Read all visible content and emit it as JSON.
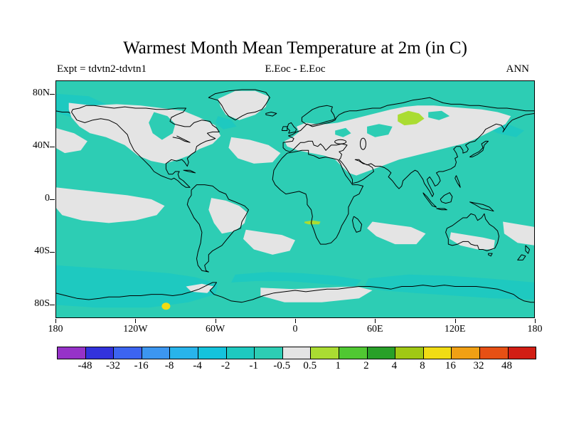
{
  "header": {
    "title": "Warmest Month Mean Temperature at 2m (in C)",
    "experiment_label": "Expt = tdvtn2-tdvtn1",
    "case_label": "E.Eoc - E.Eoc",
    "season_label": "ANN"
  },
  "chart_data": {
    "type": "heatmap",
    "subtype": "filled-contour difference map on equirectangular world projection",
    "title": "Warmest Month Mean Temperature at 2m (in C)",
    "annotations": {
      "top_left": "Expt = tdvtn2-tdvtn1",
      "top_center": "E.Eoc - E.Eoc",
      "top_right": "ANN"
    },
    "grid": false,
    "x_axis": {
      "range": [
        -180,
        180
      ],
      "ticks": [
        {
          "label": "180",
          "lon": -180
        },
        {
          "label": "120W",
          "lon": -120
        },
        {
          "label": "60W",
          "lon": -60
        },
        {
          "label": "0",
          "lon": 0
        },
        {
          "label": "60E",
          "lon": 60
        },
        {
          "label": "120E",
          "lon": 120
        },
        {
          "label": "180",
          "lon": 180
        }
      ]
    },
    "y_axis": {
      "range": [
        -90,
        90
      ],
      "ticks": [
        {
          "label": "80N",
          "lat": 80
        },
        {
          "label": "40N",
          "lat": 40
        },
        {
          "label": "0",
          "lat": 0
        },
        {
          "label": "40S",
          "lat": -40
        },
        {
          "label": "80S",
          "lat": -80
        }
      ]
    },
    "colorbar": {
      "units": "C",
      "levels": [
        -48,
        -32,
        -16,
        -8,
        -4,
        -2,
        -1,
        -0.5,
        0.5,
        1,
        2,
        4,
        8,
        16,
        32,
        48
      ],
      "labels": [
        "-48",
        "-32",
        "-16",
        "-8",
        "-4",
        "-2",
        "-1",
        "-0.5",
        "0.5",
        "1",
        "2",
        "4",
        "8",
        "16",
        "32",
        "48"
      ],
      "colors": [
        "#9632C8",
        "#3232DC",
        "#3C64F0",
        "#3C96F0",
        "#28B4EB",
        "#14C3DC",
        "#1EC9C0",
        "#2DCDB4",
        "#E4E4E4",
        "#AADC32",
        "#50C832",
        "#28A028",
        "#A0C814",
        "#F0DC14",
        "#F0A014",
        "#E65014",
        "#D21E14"
      ]
    },
    "field_summary": [
      {
        "region": "most oceans and low/mid latitudes (dominant teal)",
        "value_range": "-1 to -0.5"
      },
      {
        "region": "Southern Ocean ring around Antarctica, Bering/Arctic sector, NW Pacific, Labrador Sea",
        "value_range": "-2 to -1"
      },
      {
        "region": "continental interiors (North America, Eurasia, eastern South America, Australia), Greenland, equatorial E Pacific, N and S Atlantic patches, S Indian Ocean, Atlantic sector of Antarctica",
        "value_range": "-0.5 to 0.5"
      },
      {
        "region": "West Siberia patch (~80E-95E, 57N-67N) and small dash in southern Africa (~10E-18E, 18S)",
        "value_range": "0.5 to 1"
      },
      {
        "region": "small spot on Antarctica near 97W, 81S (yellow)",
        "value_range": "8 to 16"
      }
    ]
  }
}
